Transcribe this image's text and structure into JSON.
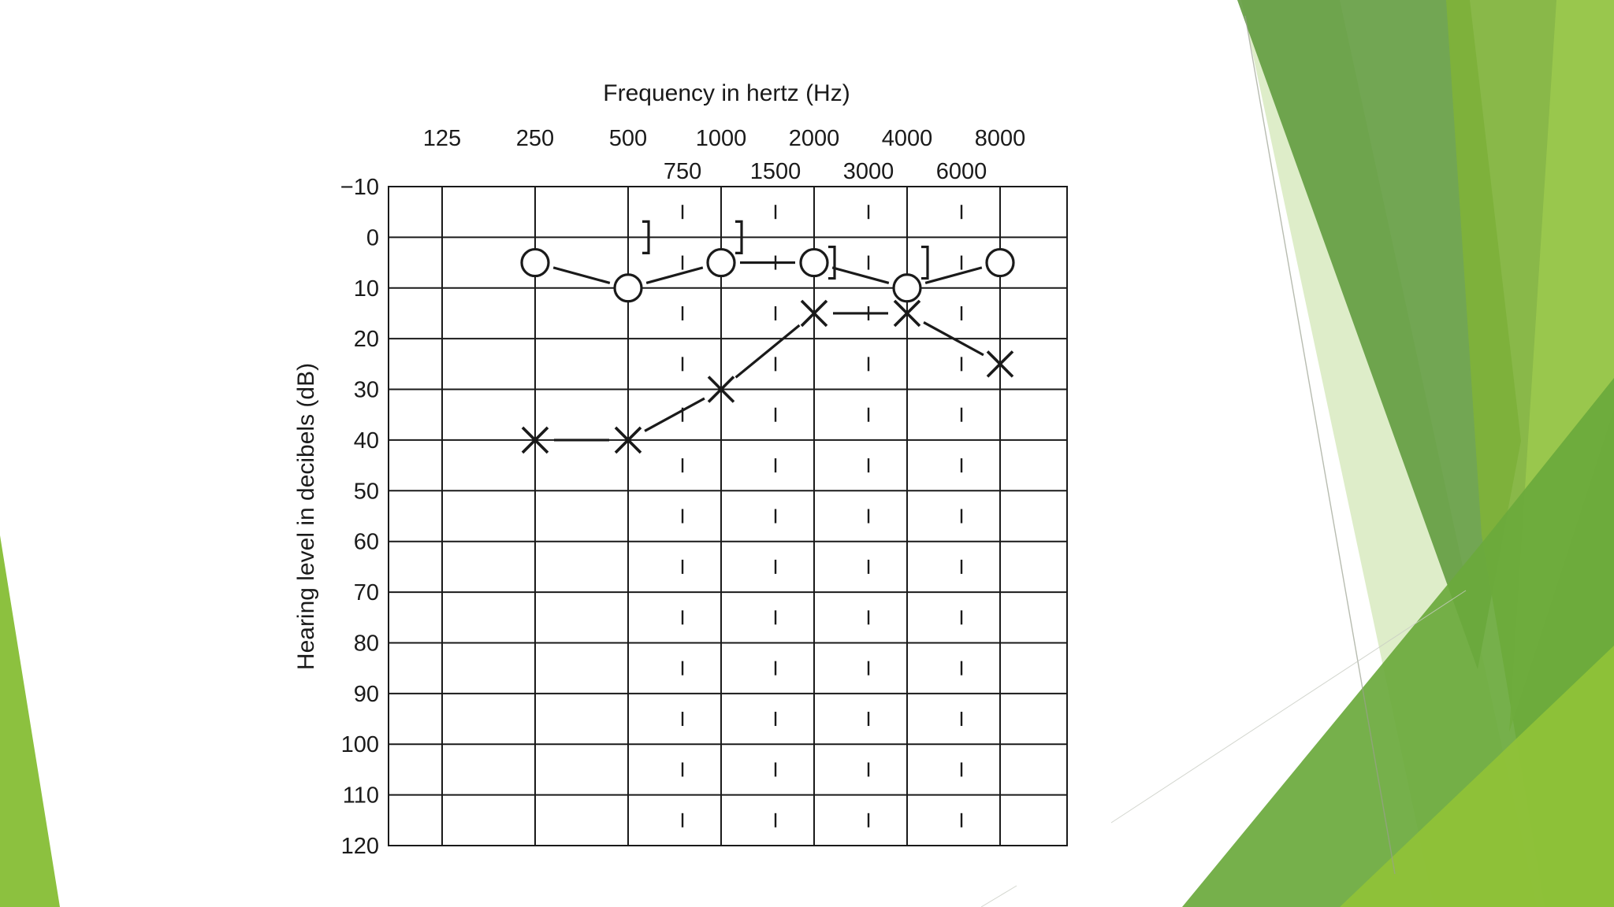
{
  "theme": {
    "background": "#ffffff",
    "accent_dark": "#5e9a3b",
    "accent_mid": "#7fb23a",
    "accent_light": "#b9d98a",
    "ink": "#1a1a1a"
  },
  "chart_data": {
    "type": "line",
    "chart_kind": "audiogram",
    "title": "",
    "xlabel": "Frequency in hertz (Hz)",
    "ylabel": "Hearing level in decibels (dB)",
    "x_scale": "log2",
    "y_reversed": true,
    "xlim": [
      125,
      8000
    ],
    "ylim": [
      -10,
      120
    ],
    "x_ticks_main": [
      125,
      250,
      500,
      1000,
      2000,
      4000,
      8000
    ],
    "x_ticks_mid": [
      750,
      1500,
      3000,
      6000
    ],
    "y_ticks": [
      -10,
      0,
      10,
      20,
      30,
      40,
      50,
      60,
      70,
      80,
      90,
      100,
      110,
      120
    ],
    "y_tick_labels": [
      "−10",
      "0",
      "10",
      "20",
      "30",
      "40",
      "50",
      "60",
      "70",
      "80",
      "90",
      "100",
      "110",
      "120"
    ],
    "grid": true,
    "legend": "none",
    "series": [
      {
        "symbol": "O",
        "x": [
          250,
          500,
          1000,
          2000,
          4000,
          8000
        ],
        "values": [
          5,
          10,
          5,
          5,
          10,
          5
        ]
      },
      {
        "symbol": "X",
        "x": [
          250,
          500,
          1000,
          2000,
          4000,
          8000
        ],
        "values": [
          40,
          40,
          30,
          15,
          15,
          25
        ]
      },
      {
        "symbol": "]",
        "x": [
          500,
          1000,
          2000,
          4000
        ],
        "values": [
          0,
          0,
          5,
          5
        ]
      }
    ]
  }
}
